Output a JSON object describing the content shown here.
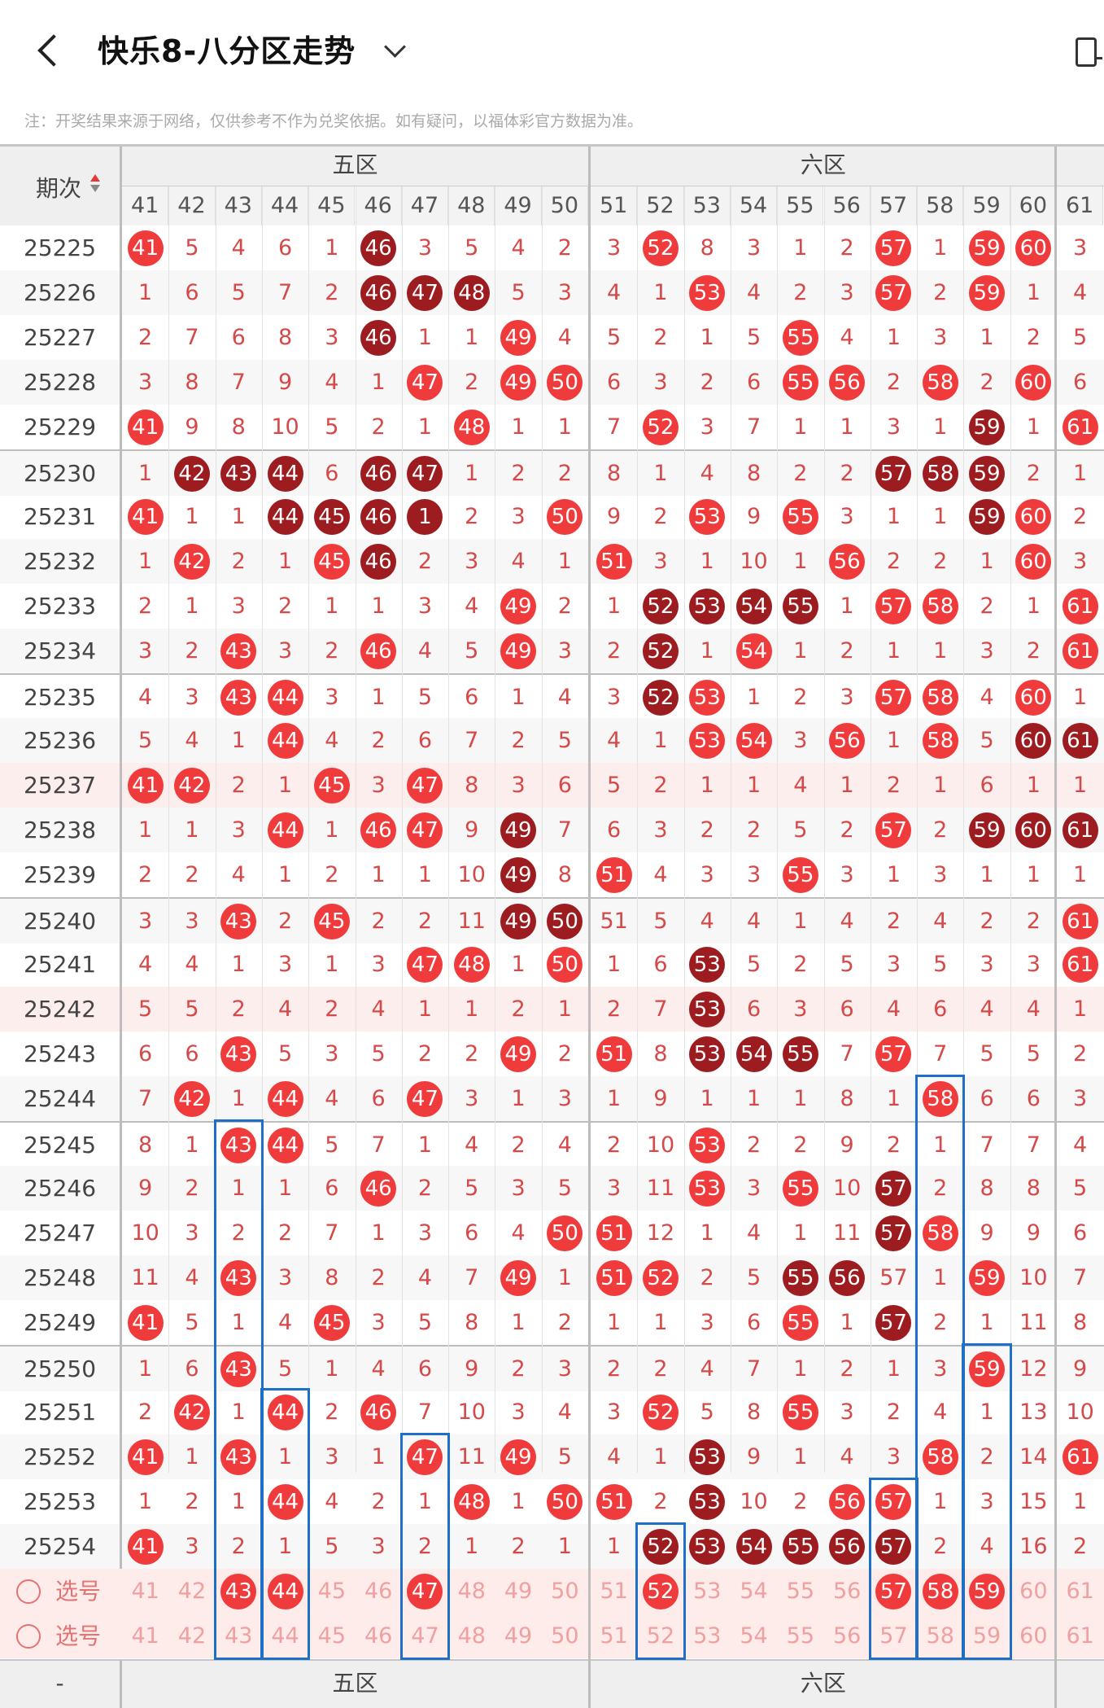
{
  "header": {
    "title": "快乐8-八分区走势"
  },
  "note": "注：开奖结果来源于网络，仅供参考不作为兑奖依据。如有疑问，以福体彩官方数据为准。",
  "period_label": "期次",
  "zones": [
    "五区",
    "六区"
  ],
  "columns": [
    "41",
    "42",
    "43",
    "44",
    "45",
    "46",
    "47",
    "48",
    "49",
    "50",
    "51",
    "52",
    "53",
    "54",
    "55",
    "56",
    "57",
    "58",
    "59",
    "60",
    "61"
  ],
  "select_label": "选号",
  "footer_dash": "-",
  "rows": [
    {
      "p": "25225",
      "v": [
        "41",
        "5",
        "4",
        "6",
        "1",
        "46",
        "3",
        "5",
        "4",
        "2",
        "3",
        "52",
        "8",
        "3",
        "1",
        "2",
        "57",
        "1",
        "59",
        "60",
        "3"
      ],
      "b": "rnnnndnnnnnrnnnnrnrrn"
    },
    {
      "p": "25226",
      "v": [
        "1",
        "6",
        "5",
        "7",
        "2",
        "46",
        "47",
        "48",
        "5",
        "3",
        "4",
        "1",
        "53",
        "4",
        "2",
        "3",
        "57",
        "2",
        "59",
        "1",
        "4"
      ],
      "b": "nnnnndddnnnnrnnnrnrnn"
    },
    {
      "p": "25227",
      "v": [
        "2",
        "7",
        "6",
        "8",
        "3",
        "46",
        "1",
        "1",
        "49",
        "4",
        "5",
        "2",
        "1",
        "5",
        "55",
        "4",
        "1",
        "3",
        "1",
        "2",
        "5"
      ],
      "b": "nnnnndnnrnnnnnrnnnnnn"
    },
    {
      "p": "25228",
      "v": [
        "3",
        "8",
        "7",
        "9",
        "4",
        "1",
        "47",
        "2",
        "49",
        "50",
        "6",
        "3",
        "2",
        "6",
        "55",
        "56",
        "2",
        "58",
        "2",
        "60",
        "6"
      ],
      "b": "nnnnnnrnrrnnnnrrnrnrn"
    },
    {
      "p": "25229",
      "v": [
        "41",
        "9",
        "8",
        "10",
        "5",
        "2",
        "1",
        "48",
        "1",
        "1",
        "7",
        "52",
        "3",
        "7",
        "1",
        "1",
        "3",
        "1",
        "59",
        "1",
        "61"
      ],
      "b": "rnnnnnnrnnnrnnnnnndnr"
    },
    {
      "p": "25230",
      "v": [
        "1",
        "42",
        "43",
        "44",
        "6",
        "46",
        "47",
        "1",
        "2",
        "2",
        "8",
        "1",
        "4",
        "8",
        "2",
        "2",
        "57",
        "58",
        "59",
        "2",
        "1"
      ],
      "b": "ndddnddnnnnnnnnndddnn"
    },
    {
      "p": "25231",
      "v": [
        "41",
        "1",
        "1",
        "44",
        "45",
        "46",
        "1",
        "2",
        "3",
        "50",
        "9",
        "2",
        "53",
        "9",
        "55",
        "3",
        "1",
        "1",
        "59",
        "60",
        "2"
      ],
      "b": "rnnddddnnrnnrnrnnndrn"
    },
    {
      "p": "25232",
      "v": [
        "1",
        "42",
        "2",
        "1",
        "45",
        "46",
        "2",
        "3",
        "4",
        "1",
        "51",
        "3",
        "1",
        "10",
        "1",
        "56",
        "2",
        "2",
        "1",
        "60",
        "3"
      ],
      "b": "nrnnrdnnnnrnnnnrnnnrn"
    },
    {
      "p": "25233",
      "v": [
        "2",
        "1",
        "3",
        "2",
        "1",
        "1",
        "3",
        "4",
        "49",
        "2",
        "1",
        "52",
        "53",
        "54",
        "55",
        "1",
        "57",
        "58",
        "2",
        "1",
        "61"
      ],
      "b": "nnnnnnnnrnnddddnrrnnr"
    },
    {
      "p": "25234",
      "v": [
        "3",
        "2",
        "43",
        "3",
        "2",
        "46",
        "4",
        "5",
        "49",
        "3",
        "2",
        "52",
        "1",
        "54",
        "1",
        "2",
        "1",
        "1",
        "3",
        "2",
        "61"
      ],
      "b": "nnrnnrnnrnndnrnnnnnnr"
    },
    {
      "p": "25235",
      "v": [
        "4",
        "3",
        "43",
        "44",
        "3",
        "1",
        "5",
        "6",
        "1",
        "4",
        "3",
        "52",
        "53",
        "1",
        "2",
        "3",
        "57",
        "58",
        "4",
        "60",
        "1"
      ],
      "b": "nnrrnnnnnnndrnnnrrnrn"
    },
    {
      "p": "25236",
      "v": [
        "5",
        "4",
        "1",
        "44",
        "4",
        "2",
        "6",
        "7",
        "2",
        "5",
        "4",
        "1",
        "53",
        "54",
        "3",
        "56",
        "1",
        "58",
        "5",
        "60",
        "61"
      ],
      "b": "nnnrnnnnnnnnrrnrnrndd"
    },
    {
      "p": "25237",
      "v": [
        "41",
        "42",
        "2",
        "1",
        "45",
        "3",
        "47",
        "8",
        "3",
        "6",
        "5",
        "2",
        "1",
        "1",
        "4",
        "1",
        "2",
        "1",
        "6",
        "1",
        "1"
      ],
      "b": "rrnnrnrnnnnnnnnnnnnnn"
    },
    {
      "p": "25238",
      "v": [
        "1",
        "1",
        "3",
        "44",
        "1",
        "46",
        "47",
        "9",
        "49",
        "7",
        "6",
        "3",
        "2",
        "2",
        "5",
        "2",
        "57",
        "2",
        "59",
        "60",
        "61"
      ],
      "b": "nnnrnrrndnnnnnnnrnddd"
    },
    {
      "p": "25239",
      "v": [
        "2",
        "2",
        "4",
        "1",
        "2",
        "1",
        "1",
        "10",
        "49",
        "8",
        "51",
        "4",
        "3",
        "3",
        "55",
        "3",
        "1",
        "3",
        "1",
        "1",
        "1"
      ],
      "b": "nnnnnnnndnrnnnrnnnnnn"
    },
    {
      "p": "25240",
      "v": [
        "3",
        "3",
        "43",
        "2",
        "45",
        "2",
        "2",
        "11",
        "49",
        "50",
        "51",
        "5",
        "4",
        "4",
        "1",
        "4",
        "2",
        "4",
        "2",
        "2",
        "61"
      ],
      "b": "nnrnrnnnddnnnnnnnnnnr"
    },
    {
      "p": "25241",
      "v": [
        "4",
        "4",
        "1",
        "3",
        "1",
        "3",
        "47",
        "48",
        "1",
        "50",
        "1",
        "6",
        "53",
        "5",
        "2",
        "5",
        "3",
        "5",
        "3",
        "3",
        "61"
      ],
      "b": "nnnnnnrrnrnndnnnnnnnr"
    },
    {
      "p": "25242",
      "v": [
        "5",
        "5",
        "2",
        "4",
        "2",
        "4",
        "1",
        "1",
        "2",
        "1",
        "2",
        "7",
        "53",
        "6",
        "3",
        "6",
        "4",
        "6",
        "4",
        "4",
        "1"
      ],
      "b": "nnnnnnnnnnnndnnnnnnnn"
    },
    {
      "p": "25243",
      "v": [
        "6",
        "6",
        "43",
        "5",
        "3",
        "5",
        "2",
        "2",
        "49",
        "2",
        "51",
        "8",
        "53",
        "54",
        "55",
        "7",
        "57",
        "7",
        "5",
        "5",
        "2"
      ],
      "b": "nnrnnnnnrnrndddnrnnnn"
    },
    {
      "p": "25244",
      "v": [
        "7",
        "42",
        "1",
        "44",
        "4",
        "6",
        "47",
        "3",
        "1",
        "3",
        "1",
        "9",
        "1",
        "1",
        "1",
        "8",
        "1",
        "58",
        "6",
        "6",
        "3"
      ],
      "b": "nrnrnnrnnnnnnnnnnrnnn"
    },
    {
      "p": "25245",
      "v": [
        "8",
        "1",
        "43",
        "44",
        "5",
        "7",
        "1",
        "4",
        "2",
        "4",
        "2",
        "10",
        "53",
        "2",
        "2",
        "9",
        "2",
        "1",
        "7",
        "7",
        "4"
      ],
      "b": "nnrrnnnnnnnnrnnnnnnnn"
    },
    {
      "p": "25246",
      "v": [
        "9",
        "2",
        "1",
        "1",
        "6",
        "46",
        "2",
        "5",
        "3",
        "5",
        "3",
        "11",
        "53",
        "3",
        "55",
        "10",
        "57",
        "2",
        "8",
        "8",
        "5"
      ],
      "b": "nnnnnrnnnnnnrnrndnnnn"
    },
    {
      "p": "25247",
      "v": [
        "10",
        "3",
        "2",
        "2",
        "7",
        "1",
        "3",
        "6",
        "4",
        "50",
        "51",
        "12",
        "1",
        "4",
        "1",
        "11",
        "57",
        "58",
        "9",
        "9",
        "6"
      ],
      "b": "nnnnnnnnnrrnnnnndrnnn"
    },
    {
      "p": "25248",
      "v": [
        "11",
        "4",
        "43",
        "3",
        "8",
        "2",
        "4",
        "7",
        "49",
        "1",
        "51",
        "52",
        "2",
        "5",
        "55",
        "56",
        "57",
        "1",
        "59",
        "10",
        "7"
      ],
      "b": "nnrnnnnnrnrrnnddnnrnn"
    },
    {
      "p": "25249",
      "v": [
        "41",
        "5",
        "1",
        "4",
        "45",
        "3",
        "5",
        "8",
        "1",
        "2",
        "1",
        "1",
        "3",
        "6",
        "55",
        "1",
        "57",
        "2",
        "1",
        "11",
        "8"
      ],
      "b": "rnnnrnnnnnnnnnrndnnnn"
    },
    {
      "p": "25250",
      "v": [
        "1",
        "6",
        "43",
        "5",
        "1",
        "4",
        "6",
        "9",
        "2",
        "3",
        "2",
        "2",
        "4",
        "7",
        "1",
        "2",
        "1",
        "3",
        "59",
        "12",
        "9"
      ],
      "b": "nnrnnnnnnnnnnnnnnnrnn"
    },
    {
      "p": "25251",
      "v": [
        "2",
        "42",
        "1",
        "44",
        "2",
        "46",
        "7",
        "10",
        "3",
        "4",
        "3",
        "52",
        "5",
        "8",
        "55",
        "3",
        "2",
        "4",
        "1",
        "13",
        "10"
      ],
      "b": "nrnrnrnnnnnrnnrnnnnnn"
    },
    {
      "p": "25252",
      "v": [
        "41",
        "1",
        "43",
        "1",
        "3",
        "1",
        "47",
        "11",
        "49",
        "5",
        "4",
        "1",
        "53",
        "9",
        "1",
        "4",
        "3",
        "58",
        "2",
        "14",
        "61"
      ],
      "b": "rnrnnnrnrnnndnnnnrnnr"
    },
    {
      "p": "25253",
      "v": [
        "1",
        "2",
        "1",
        "44",
        "4",
        "2",
        "1",
        "48",
        "1",
        "50",
        "51",
        "2",
        "53",
        "10",
        "2",
        "56",
        "57",
        "1",
        "3",
        "15",
        "1"
      ],
      "b": "nnnrnnnrnrrndnnrrnnnn"
    },
    {
      "p": "25254",
      "v": [
        "41",
        "3",
        "2",
        "1",
        "5",
        "3",
        "2",
        "1",
        "2",
        "1",
        "1",
        "52",
        "53",
        "54",
        "55",
        "56",
        "57",
        "2",
        "4",
        "16",
        "2"
      ],
      "b": "rnnnnnnnnnnddddddnnnn"
    }
  ],
  "select_row_1": {
    "v": [
      "41",
      "42",
      "43",
      "44",
      "45",
      "46",
      "47",
      "48",
      "49",
      "50",
      "51",
      "52",
      "53",
      "54",
      "55",
      "56",
      "57",
      "58",
      "59",
      "60",
      "61"
    ],
    "b": "nnrrnnrnnnnrnnnnrrrnn"
  },
  "select_row_2": {
    "v": [
      "41",
      "42",
      "43",
      "44",
      "45",
      "46",
      "47",
      "48",
      "49",
      "50",
      "51",
      "52",
      "53",
      "54",
      "55",
      "56",
      "57",
      "58",
      "59",
      "60",
      "61"
    ],
    "b": "nnnnnnnnnnnnnnnnnnnnn"
  }
}
